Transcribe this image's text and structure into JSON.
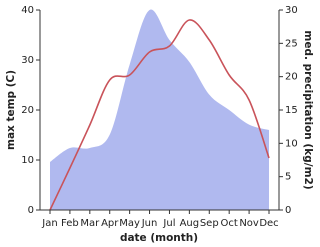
{
  "chart_data": {
    "type": "line",
    "xlabel": "date (month)",
    "ylabel": "max temp (C)",
    "y2label": "med. precipitation (kg/m2)",
    "categories": [
      "Jan",
      "Feb",
      "Mar",
      "Apr",
      "May",
      "Jun",
      "Jul",
      "Aug",
      "Sep",
      "Oct",
      "Nov",
      "Dec"
    ],
    "ylim": [
      0,
      40
    ],
    "yticks": [
      0,
      10,
      20,
      30,
      40
    ],
    "y2lim": [
      0,
      30
    ],
    "y2ticks": [
      0,
      5,
      10,
      15,
      20,
      25,
      30
    ],
    "series": [
      {
        "color": "#b0b9ef",
        "fill": true,
        "axis": "y2",
        "values": [
          7.2,
          9.3,
          9.3,
          11.3,
          21.8,
          30,
          25.5,
          22.2,
          17.3,
          15,
          12.8,
          12
        ]
      },
      {
        "color": "#c9535a",
        "values": [
          0,
          8.4,
          17,
          26,
          27,
          31.6,
          32.8,
          38,
          34,
          27,
          22,
          10.4
        ]
      }
    ]
  }
}
